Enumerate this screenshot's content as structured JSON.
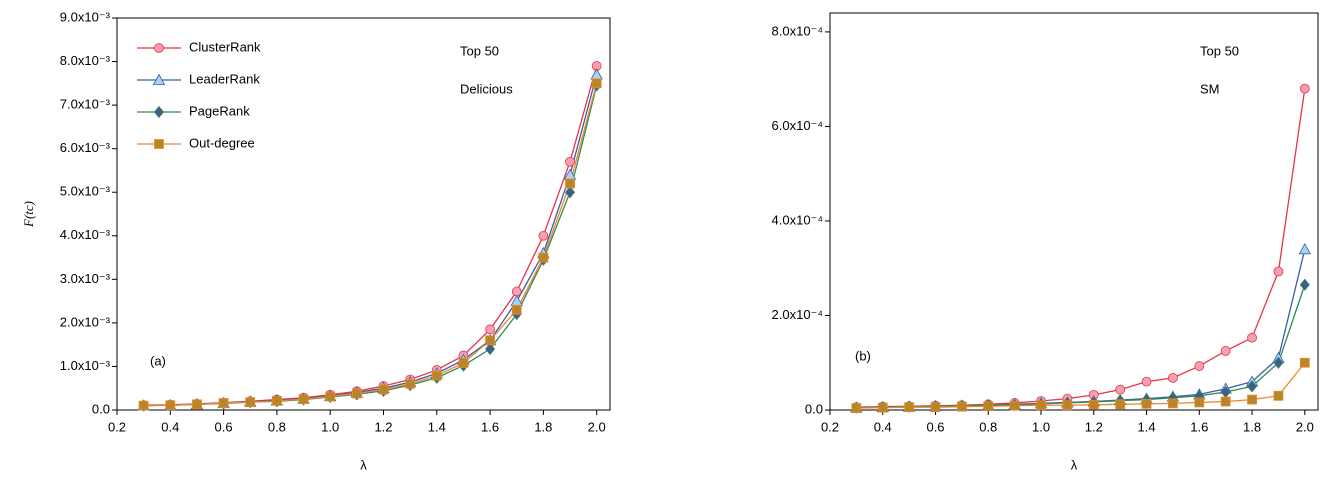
{
  "chart_data": [
    {
      "type": "line",
      "annotations": [
        "(a)",
        "Top 50",
        "Delicious"
      ],
      "x_label": "λ",
      "y_label": "F(tc)",
      "x": [
        0.3,
        0.4,
        0.5,
        0.6,
        0.7,
        0.8,
        0.9,
        1.0,
        1.1,
        1.2,
        1.3,
        1.4,
        1.5,
        1.6,
        1.7,
        1.8,
        1.9,
        2.0
      ],
      "xlim": [
        0.2,
        2.05
      ],
      "xticks": [
        0.2,
        0.4,
        0.6,
        0.8,
        {
          "value": 1,
          "label": "1.0"
        },
        1.2,
        1.4,
        1.6,
        1.8,
        {
          "value": 2,
          "label": "2.0"
        }
      ],
      "ylim": [
        0,
        0.009
      ],
      "yticks": [
        {
          "value": 0,
          "label": "0.0"
        },
        {
          "value": 0.001,
          "label": "1.0x10⁻³"
        },
        {
          "value": 0.002,
          "label": "2.0x10⁻³"
        },
        {
          "value": 0.003,
          "label": "3.0x10⁻³"
        },
        {
          "value": 0.004,
          "label": "4.0x10⁻³"
        },
        {
          "value": 0.005,
          "label": "5.0x10⁻³"
        },
        {
          "value": 0.006,
          "label": "6.0x10⁻³"
        },
        {
          "value": 0.007,
          "label": "7.0x10⁻³"
        },
        {
          "value": 0.008,
          "label": "8.0x10⁻³"
        },
        {
          "value": 0.009,
          "label": "9.0x10⁻³"
        }
      ],
      "legend": "upper left",
      "series": [
        {
          "name": "ClusterRank",
          "color": "#e8334a",
          "marker": "circle",
          "fill": "#f4a0b0",
          "values": [
            0.00011,
            0.00012,
            0.00014,
            0.00017,
            0.0002,
            0.00024,
            0.00028,
            0.00035,
            0.00043,
            0.00055,
            0.0007,
            0.00092,
            0.00125,
            0.00185,
            0.00272,
            0.004,
            0.0057,
            0.0079
          ]
        },
        {
          "name": "LeaderRank",
          "color": "#3a5da8",
          "marker": "triangle",
          "fill": "#a8d4f4",
          "values": [
            0.0001,
            0.00011,
            0.00013,
            0.00016,
            0.00019,
            0.00022,
            0.00026,
            0.00032,
            0.0004,
            0.0005,
            0.00064,
            0.00084,
            0.00115,
            0.0016,
            0.0025,
            0.0036,
            0.0054,
            0.0077
          ]
        },
        {
          "name": "PageRank",
          "color": "#2e8b57",
          "marker": "diamond",
          "fill": "#3f5e8e",
          "values": [
            0.0001,
            0.00011,
            0.00013,
            0.00015,
            0.00018,
            0.0002,
            0.00024,
            0.0003,
            0.00036,
            0.00044,
            0.00057,
            0.00074,
            0.00102,
            0.0014,
            0.0022,
            0.00345,
            0.005,
            0.00745
          ]
        },
        {
          "name": "Out-degree",
          "color": "#f0862a",
          "marker": "square",
          "fill": "#b8862a",
          "values": [
            0.0001,
            0.00011,
            0.00013,
            0.00016,
            0.00018,
            0.00021,
            0.00025,
            0.00031,
            0.00038,
            0.00047,
            0.0006,
            0.00079,
            0.00108,
            0.0016,
            0.0023,
            0.0035,
            0.0052,
            0.0075
          ]
        }
      ]
    },
    {
      "type": "line",
      "annotations": [
        "(b)",
        "Top 50",
        "SM"
      ],
      "x_label": "λ",
      "x": [
        0.3,
        0.4,
        0.5,
        0.6,
        0.7,
        0.8,
        0.9,
        1.0,
        1.1,
        1.2,
        1.3,
        1.4,
        1.5,
        1.6,
        1.7,
        1.8,
        1.9,
        2.0
      ],
      "xlim": [
        0.2,
        2.05
      ],
      "xticks": [
        0.2,
        0.4,
        0.6,
        0.8,
        {
          "value": 1,
          "label": "1.0"
        },
        1.2,
        1.4,
        1.6,
        1.8,
        {
          "value": 2,
          "label": "2.0"
        }
      ],
      "ylim": [
        0,
        0.00084
      ],
      "yticks": [
        {
          "value": 0,
          "label": "0.0"
        },
        {
          "value": 0.0002,
          "label": "2.0x10⁻⁴"
        },
        {
          "value": 0.0004,
          "label": "4.0x10⁻⁴"
        },
        {
          "value": 0.0006,
          "label": "6.0x10⁻⁴"
        },
        {
          "value": 0.0008,
          "label": "8.0x10⁻⁴"
        }
      ],
      "series": [
        {
          "color": "#e8334a",
          "marker": "circle",
          "fill": "#f4a0b0",
          "values": [
            6e-06,
            7e-06,
            8e-06,
            9e-06,
            1e-05,
            1.2e-05,
            1.5e-05,
            1.9e-05,
            2.4e-05,
            3.2e-05,
            4.3e-05,
            6e-05,
            6.8e-05,
            9.3e-05,
            0.000125,
            0.000153,
            0.000293,
            0.00068
          ]
        },
        {
          "color": "#3a5da8",
          "marker": "triangle",
          "fill": "#a8d4f4",
          "values": [
            5e-06,
            6e-06,
            7e-06,
            8e-06,
            9e-06,
            1e-05,
            1.2e-05,
            1.4e-05,
            1.6e-05,
            1.8e-05,
            2.1e-05,
            2.4e-05,
            2.8e-05,
            3.3e-05,
            4.5e-05,
            6e-05,
            0.00011,
            0.00034
          ]
        },
        {
          "color": "#2e8b57",
          "marker": "diamond",
          "fill": "#3f5e8e",
          "values": [
            5e-06,
            6e-06,
            7e-06,
            8e-06,
            9e-06,
            1e-05,
            1.1e-05,
            1.3e-05,
            1.5e-05,
            1.7e-05,
            2e-05,
            2.2e-05,
            2.6e-05,
            3e-05,
            3.8e-05,
            5e-05,
            0.0001,
            0.000265
          ]
        },
        {
          "color": "#f0862a",
          "marker": "square",
          "fill": "#b8862a",
          "values": [
            4e-06,
            5e-06,
            6e-06,
            6e-06,
            7e-06,
            8e-06,
            9e-06,
            1e-05,
            1e-05,
            1.1e-05,
            1.2e-05,
            1.3e-05,
            1.4e-05,
            1.6e-05,
            1.8e-05,
            2.2e-05,
            3e-05,
            0.0001
          ]
        }
      ]
    }
  ]
}
